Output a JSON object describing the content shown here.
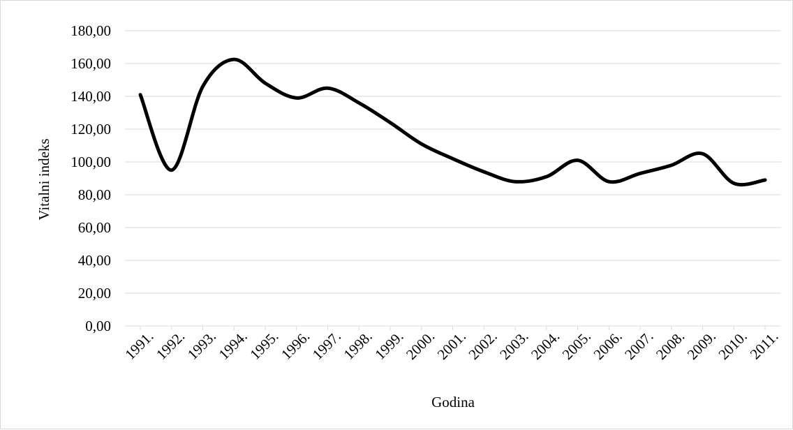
{
  "chart_data": {
    "type": "line",
    "xlabel": "Godina",
    "ylabel": "Vitalni indeks",
    "ylim": [
      0,
      180
    ],
    "yticks": [
      "0,00",
      "20,00",
      "40,00",
      "60,00",
      "80,00",
      "100,00",
      "120,00",
      "140,00",
      "160,00",
      "180,00"
    ],
    "grid": true,
    "line_color": "#000000",
    "categories": [
      "1991.",
      "1992.",
      "1993.",
      "1994.",
      "1995.",
      "1996.",
      "1997.",
      "1998.",
      "1999.",
      "2000.",
      "2001.",
      "2002.",
      "2003.",
      "2004.",
      "2005.",
      "2006.",
      "2007.",
      "2008.",
      "2009.",
      "2010.",
      "2011."
    ],
    "values": [
      141.0,
      95.0,
      146.0,
      162.5,
      148.0,
      139.0,
      145.0,
      136.0,
      124.0,
      111.0,
      102.0,
      94.0,
      88.0,
      91.0,
      101.0,
      88.0,
      93.0,
      98.0,
      105.0,
      87.0,
      89.0
    ]
  }
}
